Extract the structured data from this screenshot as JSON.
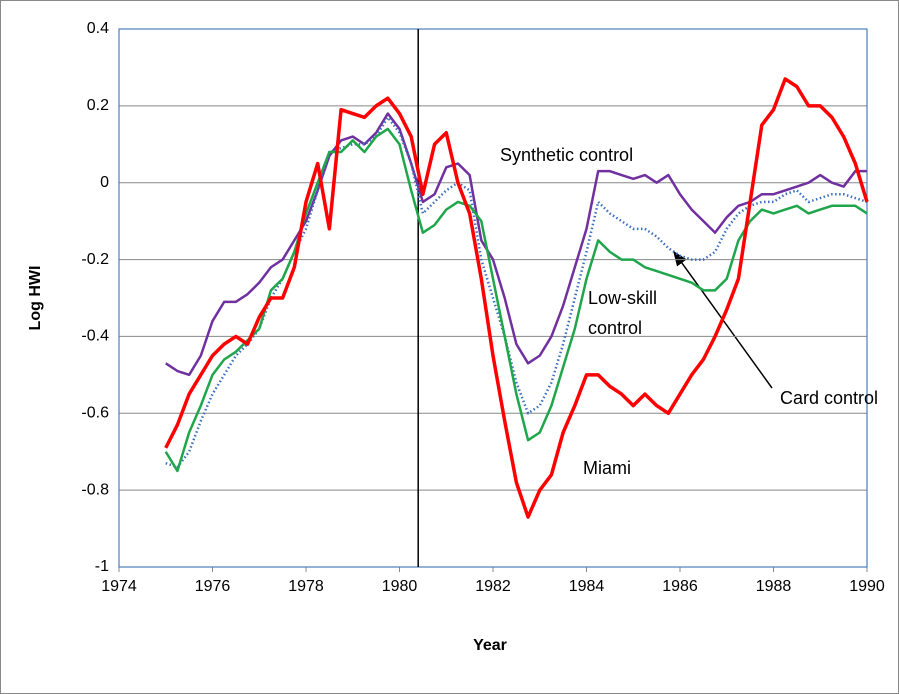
{
  "chart_data": {
    "type": "line",
    "x_label": "Year",
    "y_label": "Log HWI",
    "xlim": [
      1974,
      1990
    ],
    "xticks": [
      1974,
      1976,
      1978,
      1980,
      1982,
      1984,
      1986,
      1988,
      1990
    ],
    "ylim": [
      -1,
      0.4
    ],
    "yticks": [
      -1,
      -0.8,
      -0.6,
      -0.4,
      -0.2,
      0,
      0.2,
      0.4
    ],
    "grid": true,
    "vline": 1980.4,
    "x": [
      1975,
      1975.25,
      1975.5,
      1975.75,
      1976,
      1976.25,
      1976.5,
      1976.75,
      1977,
      1977.25,
      1977.5,
      1977.75,
      1978,
      1978.25,
      1978.5,
      1978.75,
      1979,
      1979.25,
      1979.5,
      1979.75,
      1980,
      1980.25,
      1980.5,
      1980.75,
      1981,
      1981.25,
      1981.5,
      1981.75,
      1982,
      1982.25,
      1982.5,
      1982.75,
      1983,
      1983.25,
      1983.5,
      1983.75,
      1984,
      1984.25,
      1984.5,
      1984.75,
      1985,
      1985.25,
      1985.5,
      1985.75,
      1986,
      1986.25,
      1986.5,
      1986.75,
      1987,
      1987.25,
      1987.5,
      1987.75,
      1988,
      1988.25,
      1988.5,
      1988.75,
      1989,
      1989.25,
      1989.5,
      1989.75,
      1990
    ],
    "series": [
      {
        "name": "Synthetic control",
        "color": "#7030a0",
        "values": [
          -0.47,
          -0.49,
          -0.5,
          -0.45,
          -0.36,
          -0.31,
          -0.31,
          -0.29,
          -0.26,
          -0.22,
          -0.2,
          -0.15,
          -0.1,
          -0.02,
          0.07,
          0.11,
          0.12,
          0.1,
          0.13,
          0.18,
          0.14,
          0.05,
          -0.05,
          -0.03,
          0.04,
          0.05,
          0.02,
          -0.15,
          -0.2,
          -0.3,
          -0.42,
          -0.47,
          -0.45,
          -0.4,
          -0.32,
          -0.22,
          -0.12,
          0.03,
          0.03,
          0.02,
          0.01,
          0.02,
          0,
          0.02,
          -0.03,
          -0.07,
          -0.1,
          -0.13,
          -0.09,
          -0.06,
          -0.05,
          -0.03,
          -0.03,
          -0.02,
          -0.01,
          0,
          0.02,
          0,
          -0.01,
          0.03,
          0.03
        ]
      },
      {
        "name": "Card control",
        "color": "#3a6fbf",
        "dotted": true,
        "values": [
          -0.73,
          -0.74,
          -0.7,
          -0.62,
          -0.55,
          -0.5,
          -0.45,
          -0.42,
          -0.38,
          -0.3,
          -0.25,
          -0.18,
          -0.12,
          -0.02,
          0.08,
          0.09,
          0.1,
          0.1,
          0.12,
          0.17,
          0.13,
          0.05,
          -0.08,
          -0.05,
          -0.02,
          0,
          -0.02,
          -0.2,
          -0.3,
          -0.4,
          -0.52,
          -0.6,
          -0.58,
          -0.52,
          -0.42,
          -0.3,
          -0.18,
          -0.05,
          -0.08,
          -0.1,
          -0.12,
          -0.12,
          -0.14,
          -0.17,
          -0.19,
          -0.2,
          -0.2,
          -0.18,
          -0.12,
          -0.08,
          -0.06,
          -0.05,
          -0.05,
          -0.03,
          -0.02,
          -0.05,
          -0.04,
          -0.03,
          -0.03,
          -0.04,
          -0.05
        ]
      },
      {
        "name": "Low-skill control",
        "color": "#1fa64a",
        "values": [
          -0.7,
          -0.75,
          -0.65,
          -0.58,
          -0.5,
          -0.46,
          -0.44,
          -0.41,
          -0.38,
          -0.28,
          -0.25,
          -0.18,
          -0.08,
          0,
          0.08,
          0.08,
          0.11,
          0.08,
          0.12,
          0.14,
          0.1,
          -0.02,
          -0.13,
          -0.11,
          -0.07,
          -0.05,
          -0.06,
          -0.1,
          -0.25,
          -0.4,
          -0.55,
          -0.67,
          -0.65,
          -0.58,
          -0.48,
          -0.38,
          -0.25,
          -0.15,
          -0.18,
          -0.2,
          -0.2,
          -0.22,
          -0.23,
          -0.24,
          -0.25,
          -0.26,
          -0.28,
          -0.28,
          -0.25,
          -0.15,
          -0.1,
          -0.07,
          -0.08,
          -0.07,
          -0.06,
          -0.08,
          -0.07,
          -0.06,
          -0.06,
          -0.06,
          -0.08
        ]
      },
      {
        "name": "Miami",
        "color": "#ff0000",
        "values": [
          -0.69,
          -0.63,
          -0.55,
          -0.5,
          -0.45,
          -0.42,
          -0.4,
          -0.42,
          -0.35,
          -0.3,
          -0.3,
          -0.22,
          -0.05,
          0.05,
          -0.12,
          0.19,
          0.18,
          0.17,
          0.2,
          0.22,
          0.18,
          0.12,
          -0.03,
          0.1,
          0.13,
          0,
          -0.08,
          -0.25,
          -0.45,
          -0.62,
          -0.78,
          -0.87,
          -0.8,
          -0.76,
          -0.65,
          -0.58,
          -0.5,
          -0.5,
          -0.53,
          -0.55,
          -0.58,
          -0.55,
          -0.58,
          -0.6,
          -0.55,
          -0.5,
          -0.46,
          -0.4,
          -0.33,
          -0.25,
          -0.05,
          0.15,
          0.19,
          0.27,
          0.25,
          0.2,
          0.2,
          0.17,
          0.12,
          0.05,
          -0.05
        ]
      }
    ]
  }
}
